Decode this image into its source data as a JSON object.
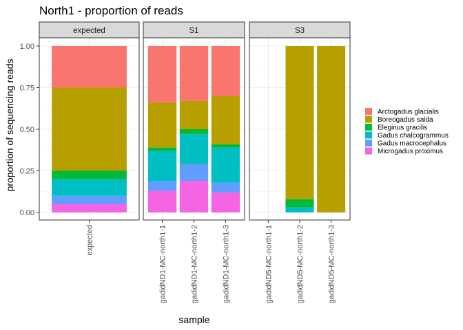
{
  "chart_data": {
    "type": "bar",
    "title": "North1 - proportion of reads",
    "xlabel": "sample",
    "ylabel": "proportion of sequencing reads",
    "ylim": [
      0,
      1
    ],
    "yticks": [
      "0.00",
      "0.25",
      "0.50",
      "0.75",
      "1.00"
    ],
    "grid": true,
    "legend_position": "right",
    "stacked": true,
    "legend": [
      {
        "name": "Arctogadus glacialis",
        "color": "#F8766D"
      },
      {
        "name": "Boreogadus saida",
        "color": "#B79F00"
      },
      {
        "name": "Eleginus gracilis",
        "color": "#00BA38"
      },
      {
        "name": "Gadus chalcogrammus",
        "color": "#00BFC4"
      },
      {
        "name": "Gadus macrocephalus",
        "color": "#619CFF"
      },
      {
        "name": "Microgadus proximus",
        "color": "#F564E3"
      }
    ],
    "panels": [
      {
        "strip": "expected",
        "categories": [
          "expected"
        ],
        "series": [
          {
            "name": "Microgadus proximus",
            "values": [
              0.05
            ]
          },
          {
            "name": "Gadus macrocephalus",
            "values": [
              0.05
            ]
          },
          {
            "name": "Gadus chalcogrammus",
            "values": [
              0.1
            ]
          },
          {
            "name": "Eleginus gracilis",
            "values": [
              0.05
            ]
          },
          {
            "name": "Boreogadus saida",
            "values": [
              0.5
            ]
          },
          {
            "name": "Arctogadus glacialis",
            "values": [
              0.25
            ]
          }
        ]
      },
      {
        "strip": "S1",
        "categories": [
          "gadidND1-MC-north1-1",
          "gadidND1-MC-north1-2",
          "gadidND1-MC-north1-3"
        ],
        "series": [
          {
            "name": "Microgadus proximus",
            "values": [
              0.13,
              0.19,
              0.12
            ]
          },
          {
            "name": "Gadus macrocephalus",
            "values": [
              0.06,
              0.1,
              0.06
            ]
          },
          {
            "name": "Gadus chalcogrammus",
            "values": [
              0.18,
              0.18,
              0.21
            ]
          },
          {
            "name": "Eleginus gracilis",
            "values": [
              0.02,
              0.03,
              0.02
            ]
          },
          {
            "name": "Boreogadus saida",
            "values": [
              0.27,
              0.17,
              0.29
            ]
          },
          {
            "name": "Arctogadus glacialis",
            "values": [
              0.34,
              0.33,
              0.3
            ]
          }
        ]
      },
      {
        "strip": "S3",
        "categories": [
          "gadidND5-MC-north1-1",
          "gadidND5-MC-north1-2",
          "gadidND5-MC-north1-3"
        ],
        "series": [
          {
            "name": "Microgadus proximus",
            "values": [
              0,
              0,
              0
            ]
          },
          {
            "name": "Gadus macrocephalus",
            "values": [
              0,
              0,
              0
            ]
          },
          {
            "name": "Gadus chalcogrammus",
            "values": [
              0,
              0.03,
              0
            ]
          },
          {
            "name": "Eleginus gracilis",
            "values": [
              0,
              0.05,
              0
            ]
          },
          {
            "name": "Boreogadus saida",
            "values": [
              0,
              0.92,
              1.0
            ]
          },
          {
            "name": "Arctogadus glacialis",
            "values": [
              0,
              0,
              0
            ]
          }
        ]
      }
    ]
  }
}
